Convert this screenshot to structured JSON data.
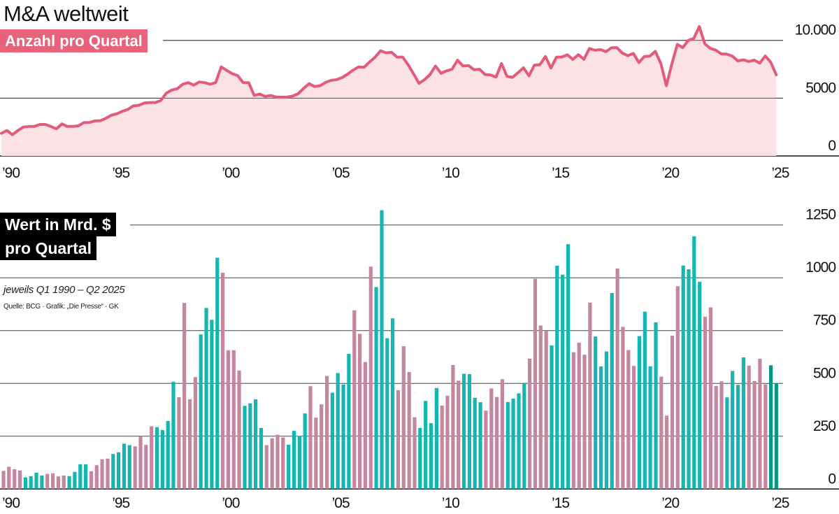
{
  "title": "M&A weltweit",
  "chart_data": [
    {
      "type": "area",
      "label": "Anzahl pro Quartal",
      "xlabel": "",
      "ylabel": "",
      "x_start": "Q1 1990",
      "x_end": "Q2 2025",
      "ylim": [
        0,
        11500
      ],
      "yticks": [
        0,
        5000,
        10000
      ],
      "ytick_labels": [
        "0",
        "5000",
        "10.000"
      ],
      "xticks": [
        1990,
        1995,
        2000,
        2005,
        2010,
        2015,
        2020,
        2025
      ],
      "xtick_labels": [
        "’90",
        "’95",
        "’00",
        "’05",
        "’10",
        "’15",
        "’20",
        "’25"
      ],
      "grid": true,
      "values": [
        1960,
        2200,
        1840,
        2200,
        2500,
        2550,
        2560,
        2720,
        2720,
        2550,
        2350,
        2770,
        2550,
        2560,
        2600,
        2880,
        2900,
        3030,
        3050,
        3250,
        3520,
        3650,
        3860,
        4020,
        4330,
        4380,
        4580,
        4620,
        4620,
        4790,
        5430,
        5700,
        5820,
        6200,
        6340,
        6130,
        6400,
        6340,
        6200,
        6350,
        7700,
        7400,
        7120,
        6950,
        6340,
        6340,
        5230,
        5360,
        5150,
        5230,
        5100,
        5080,
        5100,
        5180,
        5380,
        5850,
        6250,
        6000,
        6080,
        6360,
        6540,
        6600,
        6780,
        7080,
        7420,
        7700,
        7670,
        8130,
        8550,
        9100,
        8920,
        8970,
        8540,
        8560,
        7900,
        7100,
        6280,
        6600,
        7050,
        7780,
        7150,
        7360,
        7500,
        8280,
        7780,
        7820,
        7460,
        7500,
        7050,
        7010,
        6820,
        8000,
        6890,
        6800,
        7200,
        7620,
        6930,
        7860,
        7900,
        8600,
        7600,
        8550,
        8560,
        8750,
        8350,
        8760,
        8360,
        9300,
        9140,
        9200,
        9020,
        9350,
        9370,
        8900,
        8670,
        8870,
        8080,
        8600,
        8640,
        9050,
        8000,
        6080,
        7950,
        9650,
        9370,
        10000,
        10180,
        11200,
        9700,
        9310,
        9150,
        8830,
        8810,
        8640,
        8230,
        8310,
        8170,
        8290,
        8030,
        8650,
        8100,
        7010
      ],
      "colors": {
        "line": "#e35b79",
        "fill": "#fbe2e4"
      }
    },
    {
      "type": "bar",
      "label_line1": "Wert in Mrd. $",
      "label_line2": "pro Quartal",
      "note": "jeweils Q1 1990 – Q2 2025",
      "source": "Quelle: BCG · Grafik: „Die Presse“ · GK",
      "ylim": [
        0,
        1330
      ],
      "yticks": [
        0,
        250,
        500,
        750,
        1000,
        1250
      ],
      "ytick_labels": [
        "0",
        "250",
        "500",
        "750",
        "1000",
        "1250"
      ],
      "xticks": [
        1990,
        1995,
        2000,
        2005,
        2010,
        2015,
        2020,
        2025
      ],
      "xtick_labels": [
        "’90",
        "’95",
        "’00",
        "’05",
        "’10",
        "’15",
        "’20",
        "’25"
      ],
      "grid": true,
      "values": [
        86,
        106,
        94,
        88,
        55,
        61,
        77,
        64,
        72,
        74,
        60,
        64,
        61,
        81,
        117,
        117,
        84,
        113,
        141,
        144,
        166,
        174,
        215,
        208,
        202,
        250,
        209,
        297,
        293,
        279,
        322,
        508,
        435,
        881,
        425,
        530,
        732,
        857,
        801,
        1095,
        1024,
        657,
        657,
        561,
        394,
        406,
        425,
        289,
        208,
        240,
        257,
        244,
        210,
        275,
        251,
        358,
        487,
        338,
        401,
        535,
        456,
        549,
        495,
        640,
        846,
        735,
        601,
        1053,
        956,
        1320,
        714,
        808,
        468,
        676,
        554,
        340,
        289,
        417,
        312,
        478,
        395,
        442,
        587,
        513,
        546,
        544,
        432,
        411,
        371,
        476,
        436,
        520,
        412,
        428,
        453,
        503,
        617,
        995,
        774,
        747,
        680,
        1057,
        1015,
        1159,
        648,
        693,
        636,
        883,
        722,
        580,
        651,
        928,
        1044,
        768,
        658,
        583,
        724,
        840,
        581,
        789,
        532,
        348,
        726,
        960,
        1058,
        1040,
        1196,
        981,
        816,
        860,
        488,
        510,
        434,
        559,
        493,
        623,
        584,
        511,
        617,
        496,
        586,
        501
      ],
      "colors": {
        "even_year": "#c4879f",
        "odd_year": "#14b6b4",
        "latest": "#0a9585"
      }
    }
  ]
}
